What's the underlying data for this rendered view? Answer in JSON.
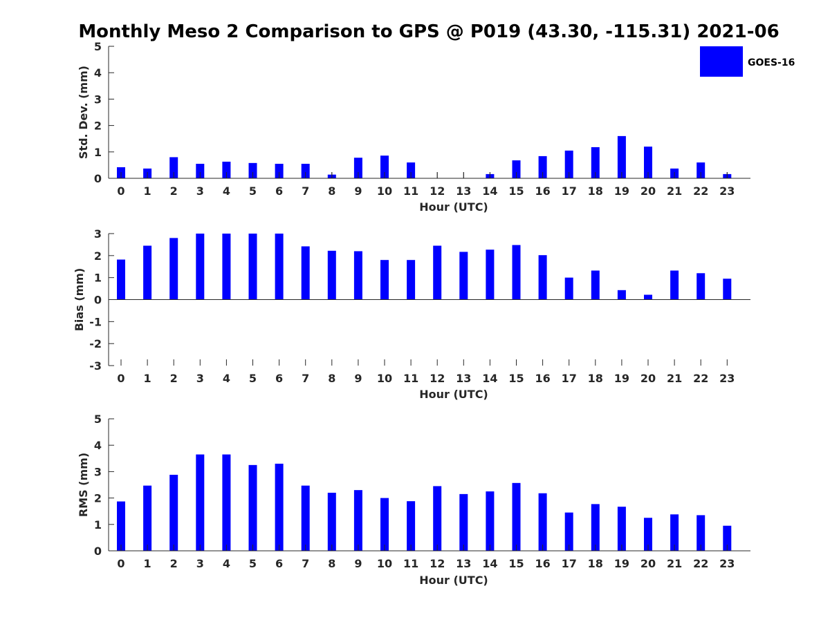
{
  "chart_data": {
    "title": "Monthly Meso 2 Comparison to GPS @ P019 (43.30, -115.31) 2021-06",
    "legend": {
      "label": "GOES-16",
      "color": "#0000ff",
      "position": "top-right"
    },
    "bar_color": "#0000ff",
    "categories": [
      "0",
      "1",
      "2",
      "3",
      "4",
      "5",
      "6",
      "7",
      "8",
      "9",
      "10",
      "11",
      "12",
      "13",
      "14",
      "15",
      "16",
      "17",
      "18",
      "19",
      "20",
      "21",
      "22",
      "23"
    ],
    "xlabel": "Hour (UTC)",
    "charts": [
      {
        "type": "bar",
        "ylabel": "Std. Dev. (mm)",
        "ylim": [
          0,
          5
        ],
        "yticks": [
          "0",
          "1",
          "2",
          "3",
          "4",
          "5"
        ],
        "values": [
          0.42,
          0.37,
          0.8,
          0.55,
          0.63,
          0.58,
          0.55,
          0.55,
          0.14,
          0.78,
          0.86,
          0.6,
          0,
          0,
          0.16,
          0.68,
          0.84,
          1.05,
          1.18,
          1.6,
          1.2,
          0.37,
          0.6,
          0.16
        ],
        "error_bars": [
          false,
          false,
          false,
          false,
          false,
          false,
          false,
          false,
          true,
          false,
          false,
          false,
          true,
          true,
          true,
          false,
          false,
          false,
          false,
          false,
          false,
          false,
          false,
          true
        ]
      },
      {
        "type": "bar",
        "ylabel": "Bias (mm)",
        "ylim": [
          -3,
          3
        ],
        "yticks": [
          "-3",
          "-2",
          "-1",
          "0",
          "1",
          "2",
          "3"
        ],
        "values": [
          1.82,
          2.45,
          2.8,
          3.0,
          3.0,
          3.0,
          3.0,
          2.42,
          2.22,
          2.2,
          1.8,
          1.8,
          2.45,
          2.17,
          2.27,
          2.48,
          2.02,
          1.0,
          1.32,
          0.43,
          0.22,
          1.32,
          1.2,
          0.95
        ]
      },
      {
        "type": "bar",
        "ylabel": "RMS (mm)",
        "ylim": [
          0,
          5
        ],
        "yticks": [
          "0",
          "1",
          "2",
          "3",
          "4",
          "5"
        ],
        "values": [
          1.87,
          2.47,
          2.88,
          3.65,
          3.65,
          3.25,
          3.3,
          2.47,
          2.2,
          2.3,
          2.0,
          1.88,
          2.45,
          2.15,
          2.25,
          2.57,
          2.18,
          1.45,
          1.77,
          1.67,
          1.25,
          1.38,
          1.35,
          0.95
        ]
      }
    ]
  }
}
